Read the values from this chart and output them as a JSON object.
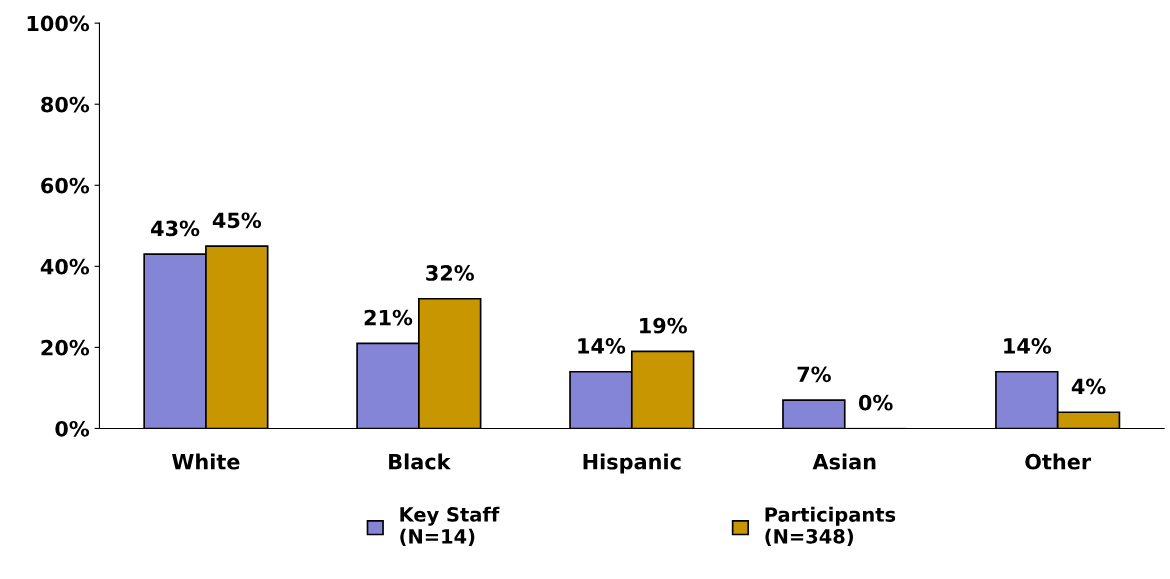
{
  "chart_data": {
    "type": "bar",
    "categories": [
      "White",
      "Black",
      "Hispanic",
      "Asian",
      "Other"
    ],
    "series": [
      {
        "name": "Key Staff\n(N=14)",
        "color": "#8585d8",
        "values": [
          43,
          21,
          14,
          7,
          14
        ],
        "value_labels": [
          "43%",
          "21%",
          "14%",
          "7%",
          "14%"
        ]
      },
      {
        "name": "Participants\n(N=348)",
        "color": "#c89600",
        "values": [
          45,
          32,
          19,
          0,
          4
        ],
        "value_labels": [
          "45%",
          "32%",
          "19%",
          "0%",
          "4%"
        ]
      }
    ],
    "ylim": [
      0,
      100
    ],
    "yticks": [
      {
        "value": 0,
        "label": "0%"
      },
      {
        "value": 20,
        "label": "20%"
      },
      {
        "value": 40,
        "label": "40%"
      },
      {
        "value": 60,
        "label": "60%"
      },
      {
        "value": 80,
        "label": "80%"
      },
      {
        "value": 100,
        "label": "100%"
      }
    ],
    "grid": false,
    "legend": "bottom"
  }
}
